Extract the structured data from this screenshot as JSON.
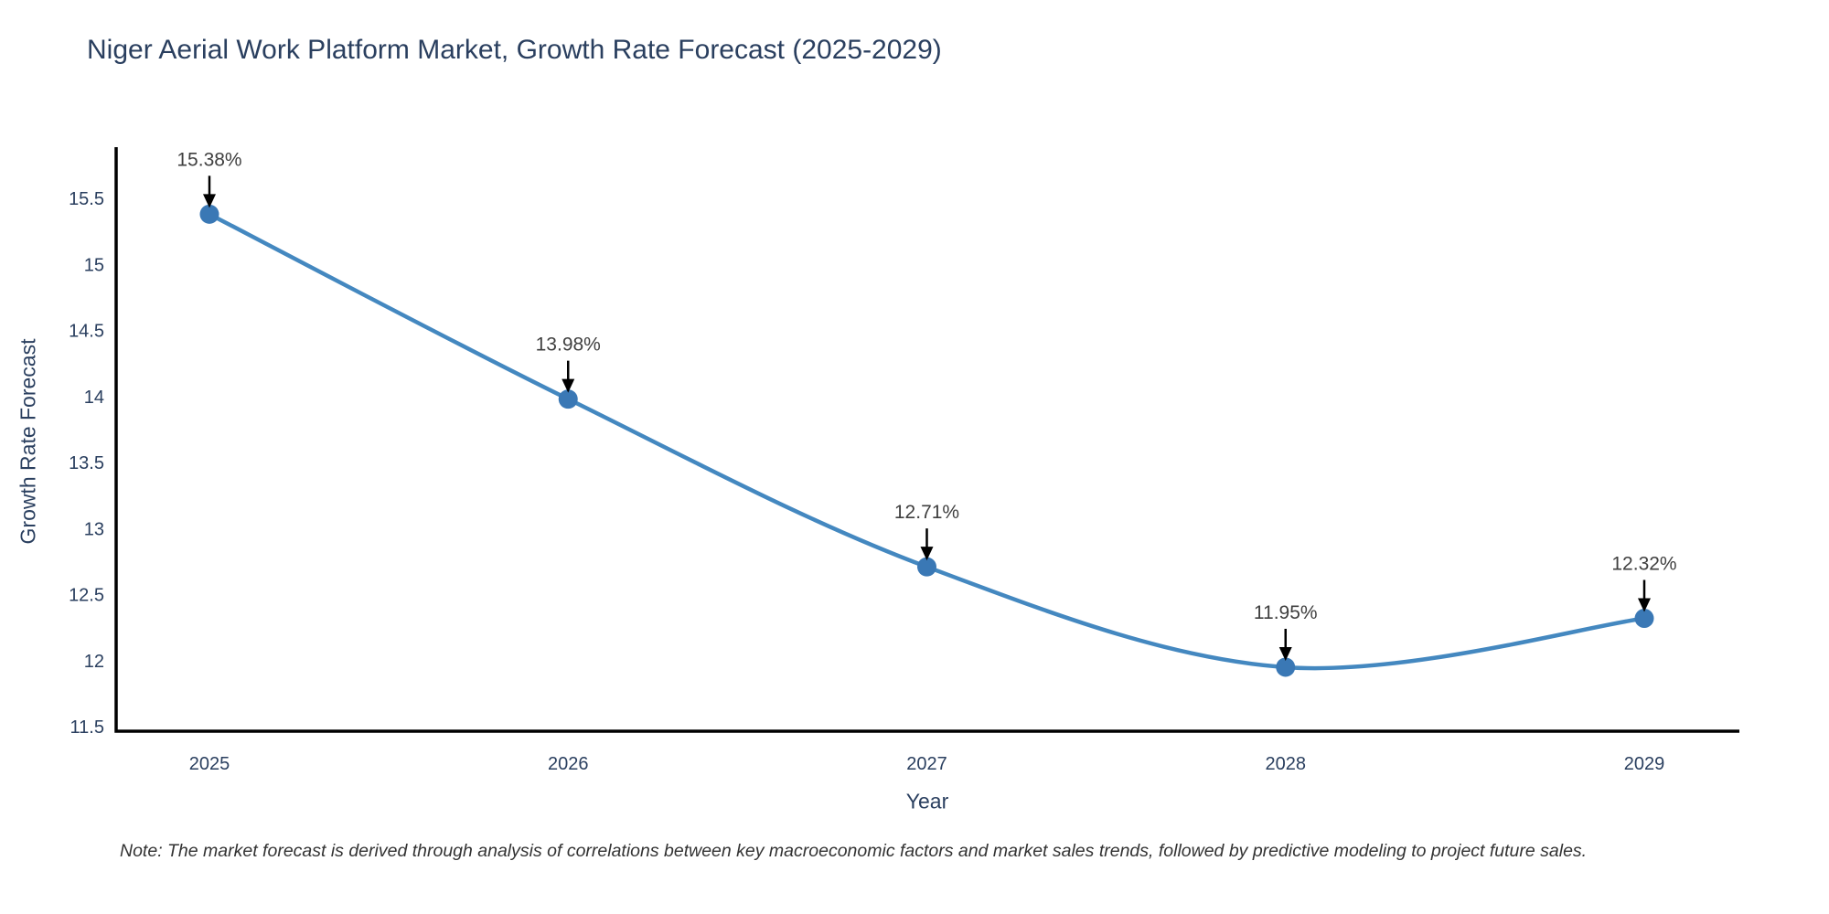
{
  "note": "Note: The market forecast is derived through analysis of correlations between key macroeconomic factors and market sales trends, followed by predictive modeling to project future sales.",
  "chart_data": {
    "type": "line",
    "title": "Niger Aerial Work Platform Market, Growth Rate Forecast (2025-2029)",
    "xlabel": "Year",
    "ylabel": "Growth Rate Forecast",
    "x": [
      "2025",
      "2026",
      "2027",
      "2028",
      "2029"
    ],
    "values": [
      15.38,
      13.98,
      12.71,
      11.95,
      12.32
    ],
    "point_labels": [
      "15.38%",
      "13.98%",
      "12.71%",
      "11.95%",
      "12.32%"
    ],
    "ytick_labels": [
      "11.5",
      "12",
      "12.5",
      "13",
      "13.5",
      "14",
      "14.5",
      "15",
      "15.5"
    ],
    "ylim": [
      11.46,
      15.92
    ],
    "xlim_years": [
      2024.74,
      2029.27
    ],
    "grid": false,
    "legend": false,
    "line_shape": "spline",
    "marker_style": "circle",
    "annotation_style": "value-above-with-down-arrow",
    "colors": {
      "line": "#4488c0",
      "marker": "#3a78b5",
      "axis": "#000000",
      "tick_label": "#2a3f5f",
      "title": "#2a3f5f",
      "annotation_text": "#3f3f3f",
      "annotation_arrow": "#000000",
      "note_text": "#333333",
      "background": "#ffffff"
    }
  }
}
